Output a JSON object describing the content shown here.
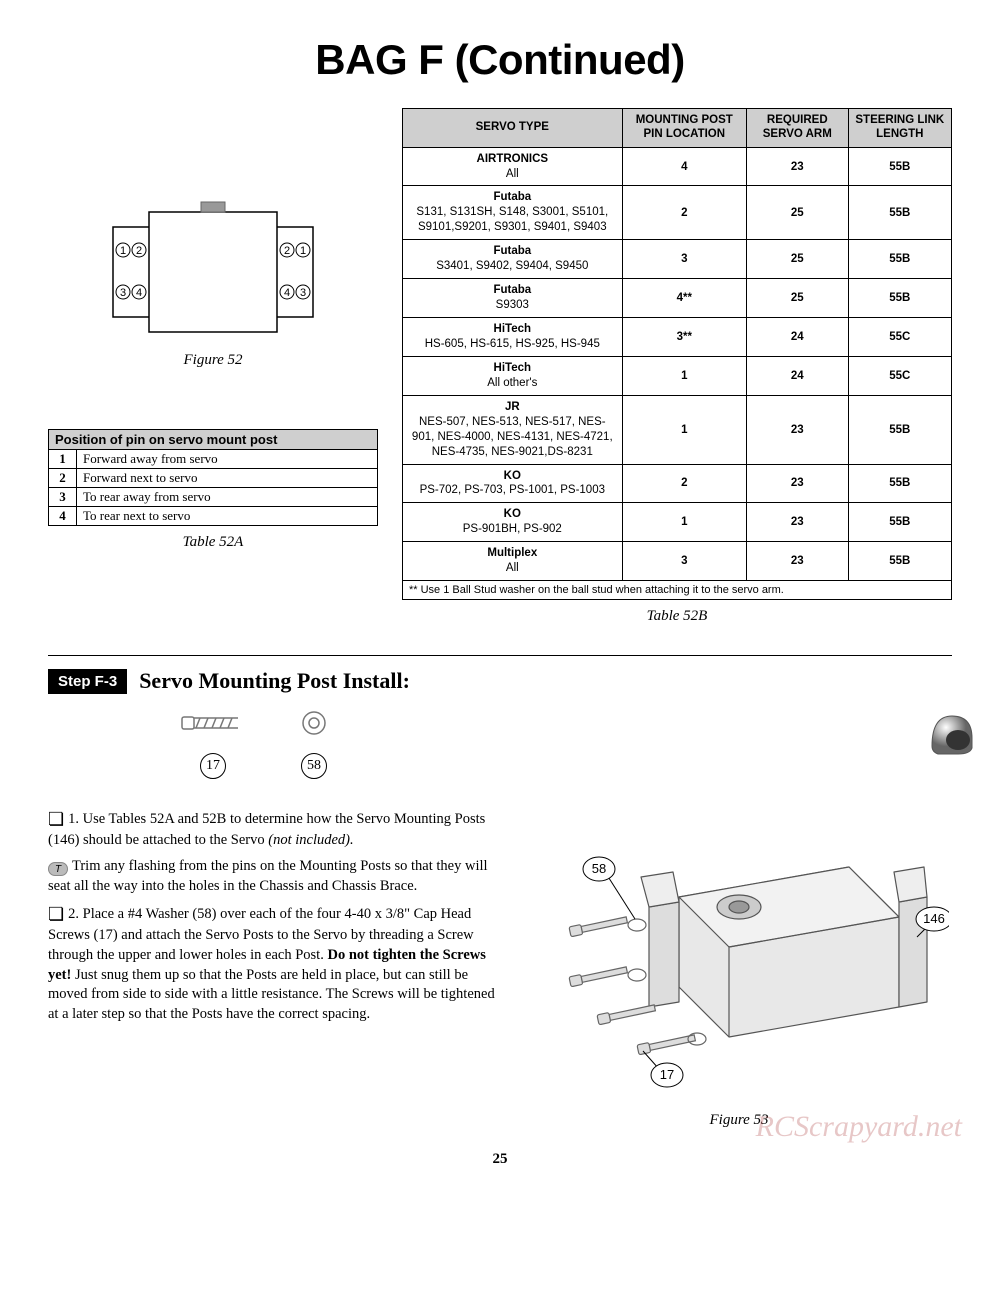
{
  "page_title": "BAG F (Continued)",
  "figure52": {
    "caption": "Figure 52",
    "labels": [
      "1",
      "2",
      "3",
      "4"
    ]
  },
  "table52a": {
    "caption": "Table 52A",
    "header": "Position of pin on servo mount post",
    "rows": [
      {
        "n": "1",
        "d": "Forward away from servo"
      },
      {
        "n": "2",
        "d": "Forward next to servo"
      },
      {
        "n": "3",
        "d": "To rear away from servo"
      },
      {
        "n": "4",
        "d": "To rear next to servo"
      }
    ]
  },
  "table52b": {
    "caption": "Table 52B",
    "columns": [
      "SERVO TYPE",
      "MOUNTING POST PIN LOCATION",
      "REQUIRED SERVO ARM",
      "STEERING LINK LENGTH"
    ],
    "rows": [
      {
        "brand": "AIRTRONICS",
        "models": "All",
        "pin": "4",
        "arm": "23",
        "link": "55B"
      },
      {
        "brand": "Futaba",
        "models": "S131, S131SH, S148, S3001, S5101, S9101,S9201, S9301, S9401, S9403",
        "pin": "2",
        "arm": "25",
        "link": "55B"
      },
      {
        "brand": "Futaba",
        "models": "S3401, S9402, S9404, S9450",
        "pin": "3",
        "arm": "25",
        "link": "55B"
      },
      {
        "brand": "Futaba",
        "models": "S9303",
        "pin": "4**",
        "arm": "25",
        "link": "55B"
      },
      {
        "brand": "HiTech",
        "models": "HS-605, HS-615, HS-925, HS-945",
        "pin": "3**",
        "arm": "24",
        "link": "55C"
      },
      {
        "brand": "HiTech",
        "models": "All other's",
        "pin": "1",
        "arm": "24",
        "link": "55C"
      },
      {
        "brand": "JR",
        "models": "NES-507, NES-513, NES-517, NES-901, NES-4000, NES-4131, NES-4721, NES-4735, NES-9021,DS-8231",
        "pin": "1",
        "arm": "23",
        "link": "55B"
      },
      {
        "brand": "KO",
        "models": "PS-702, PS-703, PS-1001, PS-1003",
        "pin": "2",
        "arm": "23",
        "link": "55B"
      },
      {
        "brand": "KO",
        "models": "PS-901BH, PS-902",
        "pin": "1",
        "arm": "23",
        "link": "55B"
      },
      {
        "brand": "Multiplex",
        "models": "All",
        "pin": "3",
        "arm": "23",
        "link": "55B"
      }
    ],
    "footnote": "** Use 1 Ball Stud washer on the ball stud when attaching it to the servo arm."
  },
  "step": {
    "badge": "Step F-3",
    "title": "Servo Mounting Post Install:",
    "parts": [
      {
        "id": "17",
        "icon": "screw"
      },
      {
        "id": "58",
        "icon": "washer"
      }
    ],
    "helmet": true
  },
  "instructions": {
    "p1_a": "1. Use Tables 52A and 52B to determine how the Servo Mounting Posts (146) should be attached to the Servo ",
    "p1_b": "(not included).",
    "tip": "Trim any flashing from the pins on the Mounting Posts so that they will seat all the way into the holes in the Chassis and Chassis Brace.",
    "p2_a": "2. Place a #4 Washer (58) over each of the four 4-40 x 3/8\" Cap Head Screws (17) and attach the Servo Posts to the Servo by threading a Screw through the upper and lower holes in each Post. ",
    "p2_b": "Do not tighten the Screws yet!",
    "p2_c": " Just snug them up so that the Posts are held in place, but can still be moved from side to side with a little resistance. The Screws will be tightened at a later step so that the Posts have the correct spacing."
  },
  "figure53": {
    "caption": "Figure 53",
    "callouts": [
      "58",
      "17",
      "146"
    ]
  },
  "page_number": "25",
  "watermark": "RCScrapyard.net",
  "colors": {
    "header_bg": "#cfcfcf",
    "line": "#000000"
  }
}
